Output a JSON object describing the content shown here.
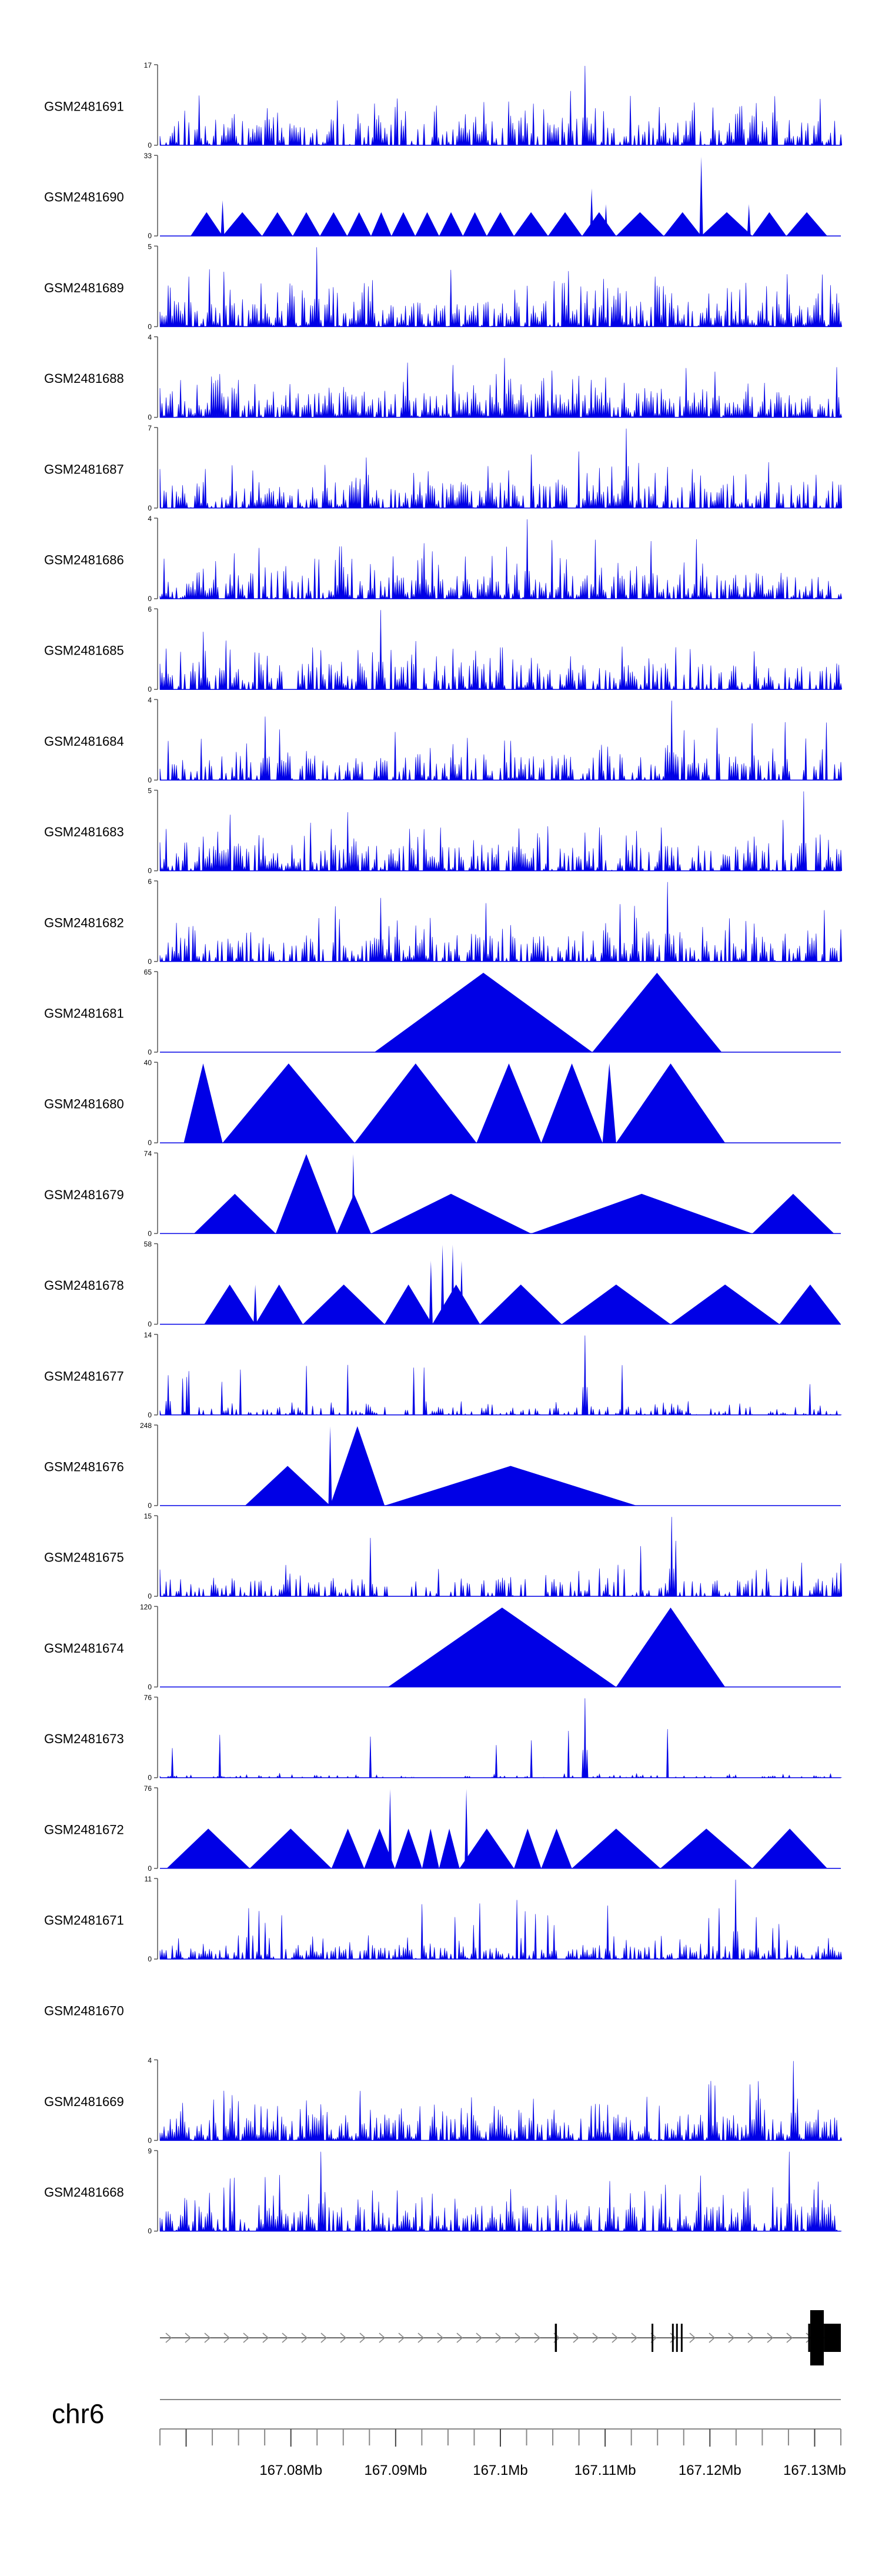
{
  "chart_data": {
    "type": "area",
    "title": "",
    "chromosome": "chr6",
    "x_axis": {
      "unit": "Mb",
      "range": [
        167.0675,
        167.1325
      ],
      "ticks": [
        167.0675,
        167.07,
        167.0725,
        167.075,
        167.0775,
        167.08,
        167.0825,
        167.085,
        167.0875,
        167.09,
        167.0925,
        167.095,
        167.0975,
        167.1,
        167.1025,
        167.105,
        167.1075,
        167.11,
        167.1125,
        167.115,
        167.1175,
        167.12,
        167.1225,
        167.125,
        167.1275,
        167.13,
        167.1325
      ],
      "major_labels": [
        "167.08Mb",
        "167.09Mb",
        "167.1Mb",
        "167.11Mb",
        "167.12Mb",
        "167.13Mb"
      ]
    },
    "tracks": [
      {
        "name": "GSM2481691",
        "ymax": 17,
        "ylabel_max": "17",
        "ylabel_min": "0",
        "mode": "dense",
        "seed": 11,
        "peaks": [
          [
            0.625,
            1.0
          ],
          [
            0.85,
            0.4
          ],
          [
            0.53,
            0.35
          ]
        ]
      },
      {
        "name": "GSM2481690",
        "ymax": 33,
        "ylabel_max": "33",
        "ylabel_min": "0",
        "mode": "triangles",
        "segments": [
          [
            0.045,
            0.092,
            0.3
          ],
          [
            0.092,
            0.15,
            0.3
          ],
          [
            0.15,
            0.195,
            0.3
          ],
          [
            0.195,
            0.235,
            0.3
          ],
          [
            0.235,
            0.275,
            0.3
          ],
          [
            0.275,
            0.31,
            0.3
          ],
          [
            0.31,
            0.34,
            0.3
          ],
          [
            0.34,
            0.375,
            0.3
          ],
          [
            0.375,
            0.41,
            0.3
          ],
          [
            0.41,
            0.445,
            0.3
          ],
          [
            0.445,
            0.48,
            0.3
          ],
          [
            0.48,
            0.52,
            0.3
          ],
          [
            0.52,
            0.57,
            0.3
          ],
          [
            0.57,
            0.62,
            0.3
          ],
          [
            0.62,
            0.67,
            0.3
          ],
          [
            0.67,
            0.74,
            0.3
          ],
          [
            0.74,
            0.795,
            0.3
          ],
          [
            0.795,
            0.87,
            0.3
          ],
          [
            0.87,
            0.92,
            0.3
          ],
          [
            0.92,
            0.98,
            0.3
          ]
        ],
        "spikes": [
          [
            0.092,
            0.45
          ],
          [
            0.634,
            0.6
          ],
          [
            0.795,
            1.0
          ],
          [
            0.655,
            0.4
          ],
          [
            0.865,
            0.4
          ]
        ]
      },
      {
        "name": "GSM2481689",
        "ymax": 5,
        "ylabel_max": "5",
        "ylabel_min": "0",
        "mode": "dense",
        "seed": 23,
        "density": 0.85,
        "peaks": [
          [
            0.23,
            1.0
          ]
        ]
      },
      {
        "name": "GSM2481688",
        "ymax": 4,
        "ylabel_max": "4",
        "ylabel_min": "0",
        "mode": "dense",
        "seed": 37,
        "density": 0.9,
        "peaks": []
      },
      {
        "name": "GSM2481687",
        "ymax": 7,
        "ylabel_max": "7",
        "ylabel_min": "0",
        "mode": "dense",
        "seed": 41,
        "density": 0.8,
        "peaks": [
          [
            0.685,
            1.0
          ]
        ]
      },
      {
        "name": "GSM2481686",
        "ymax": 4,
        "ylabel_max": "4",
        "ylabel_min": "0",
        "mode": "dense",
        "seed": 53,
        "density": 0.8,
        "peaks": [
          [
            0.54,
            1.0
          ]
        ]
      },
      {
        "name": "GSM2481685",
        "ymax": 6,
        "ylabel_max": "6",
        "ylabel_min": "0",
        "mode": "dense",
        "seed": 61,
        "density": 0.7,
        "peaks": [
          [
            0.325,
            1.0
          ]
        ]
      },
      {
        "name": "GSM2481684",
        "ymax": 4,
        "ylabel_max": "4",
        "ylabel_min": "0",
        "mode": "dense",
        "seed": 71,
        "density": 0.7,
        "peaks": [
          [
            0.752,
            1.0
          ],
          [
            0.155,
            0.8
          ]
        ]
      },
      {
        "name": "GSM2481683",
        "ymax": 5,
        "ylabel_max": "5",
        "ylabel_min": "0",
        "mode": "dense",
        "seed": 83,
        "density": 0.75,
        "peaks": [
          [
            0.945,
            1.0
          ]
        ]
      },
      {
        "name": "GSM2481682",
        "ymax": 6,
        "ylabel_max": "6",
        "ylabel_min": "0",
        "mode": "dense",
        "seed": 97,
        "density": 0.7,
        "peaks": [
          [
            0.745,
            1.0
          ],
          [
            0.325,
            0.8
          ]
        ]
      },
      {
        "name": "GSM2481681",
        "ymax": 65,
        "ylabel_max": "65",
        "ylabel_min": "0",
        "mode": "triangles",
        "segments": [
          [
            0.315,
            0.635,
            1.0
          ],
          [
            0.635,
            0.825,
            1.0
          ]
        ],
        "spikes": []
      },
      {
        "name": "GSM2481680",
        "ymax": 40,
        "ylabel_max": "40",
        "ylabel_min": "0",
        "mode": "triangles",
        "segments": [
          [
            0.035,
            0.092,
            1.0
          ],
          [
            0.092,
            0.286,
            1.0
          ],
          [
            0.286,
            0.465,
            1.0
          ],
          [
            0.465,
            0.56,
            1.0
          ],
          [
            0.56,
            0.65,
            1.0
          ],
          [
            0.65,
            0.67,
            1.0
          ],
          [
            0.67,
            0.83,
            1.0
          ]
        ],
        "spikes": []
      },
      {
        "name": "GSM2481679",
        "ymax": 74,
        "ylabel_max": "74",
        "ylabel_min": "0",
        "mode": "triangles",
        "segments": [
          [
            0.05,
            0.17,
            0.5
          ],
          [
            0.17,
            0.26,
            1.0
          ],
          [
            0.26,
            0.31,
            0.5
          ],
          [
            0.31,
            0.545,
            0.5
          ],
          [
            0.545,
            0.87,
            0.5
          ],
          [
            0.87,
            0.99,
            0.5
          ]
        ],
        "spikes": [
          [
            0.284,
            1.0
          ]
        ]
      },
      {
        "name": "GSM2481678",
        "ymax": 58,
        "ylabel_max": "58",
        "ylabel_min": "0",
        "mode": "triangles",
        "segments": [
          [
            0.065,
            0.14,
            0.5
          ],
          [
            0.14,
            0.21,
            0.5
          ],
          [
            0.21,
            0.33,
            0.5
          ],
          [
            0.33,
            0.4,
            0.5
          ],
          [
            0.4,
            0.47,
            0.5
          ],
          [
            0.47,
            0.59,
            0.5
          ],
          [
            0.59,
            0.75,
            0.5
          ],
          [
            0.75,
            0.91,
            0.5
          ],
          [
            0.91,
            1.0,
            0.5
          ]
        ],
        "spikes": [
          [
            0.14,
            0.5
          ],
          [
            0.398,
            0.8
          ],
          [
            0.415,
            1.0
          ],
          [
            0.43,
            1.0
          ],
          [
            0.443,
            0.8
          ]
        ]
      },
      {
        "name": "GSM2481677",
        "ymax": 14,
        "ylabel_max": "14",
        "ylabel_min": "0",
        "mode": "dense",
        "seed": 131,
        "density": 0.5,
        "low": 0.18,
        "peaks": [
          [
            0.625,
            1.0
          ],
          [
            0.013,
            0.5
          ]
        ]
      },
      {
        "name": "GSM2481676",
        "ymax": 248,
        "ylabel_max": "248",
        "ylabel_min": "0",
        "mode": "triangles",
        "segments": [
          [
            0.125,
            0.25,
            0.5
          ],
          [
            0.25,
            0.33,
            1.0
          ],
          [
            0.33,
            0.7,
            0.5
          ]
        ],
        "spikes": [
          [
            0.25,
            1.0
          ]
        ]
      },
      {
        "name": "GSM2481675",
        "ymax": 15,
        "ylabel_max": "15",
        "ylabel_min": "0",
        "mode": "dense",
        "seed": 149,
        "density": 0.55,
        "low": 0.4,
        "peaks": [
          [
            0.752,
            1.0
          ]
        ]
      },
      {
        "name": "GSM2481674",
        "ymax": 120,
        "ylabel_max": "120",
        "ylabel_min": "0",
        "mode": "triangles",
        "segments": [
          [
            0.335,
            0.67,
            1.0
          ],
          [
            0.67,
            0.83,
            1.0
          ]
        ],
        "spikes": []
      },
      {
        "name": "GSM2481673",
        "ymax": 76,
        "ylabel_max": "76",
        "ylabel_min": "0",
        "mode": "dense",
        "seed": 173,
        "density": 0.4,
        "low": 0.06,
        "peaks": [
          [
            0.625,
            1.0
          ]
        ]
      },
      {
        "name": "GSM2481672",
        "ymax": 76,
        "ylabel_max": "76",
        "ylabel_min": "0",
        "mode": "triangles",
        "segments": [
          [
            0.01,
            0.132,
            0.5
          ],
          [
            0.132,
            0.252,
            0.5
          ],
          [
            0.252,
            0.3,
            0.5
          ],
          [
            0.3,
            0.345,
            0.5
          ],
          [
            0.345,
            0.385,
            0.5
          ],
          [
            0.385,
            0.41,
            0.5
          ],
          [
            0.41,
            0.44,
            0.5
          ],
          [
            0.44,
            0.52,
            0.5
          ],
          [
            0.52,
            0.56,
            0.5
          ],
          [
            0.56,
            0.605,
            0.5
          ],
          [
            0.605,
            0.735,
            0.5
          ],
          [
            0.735,
            0.87,
            0.5
          ],
          [
            0.87,
            0.98,
            0.5
          ]
        ],
        "spikes": [
          [
            0.338,
            1.0
          ],
          [
            0.45,
            1.0
          ]
        ]
      },
      {
        "name": "GSM2481671",
        "ymax": 11,
        "ylabel_max": "11",
        "ylabel_min": "0",
        "mode": "dense",
        "seed": 191,
        "density": 0.75,
        "low": 0.3,
        "peaks": [
          [
            0.845,
            1.0
          ]
        ]
      },
      {
        "name": "GSM2481670",
        "ymax": 0,
        "ylabel_max": "",
        "ylabel_min": "",
        "mode": "empty"
      },
      {
        "name": "GSM2481669",
        "ymax": 4,
        "ylabel_max": "4",
        "ylabel_min": "0",
        "mode": "dense",
        "seed": 211,
        "density": 0.85,
        "peaks": [
          [
            0.93,
            1.0
          ]
        ]
      },
      {
        "name": "GSM2481668",
        "ymax": 9,
        "ylabel_max": "9",
        "ylabel_min": "0",
        "mode": "dense",
        "seed": 223,
        "density": 0.75,
        "peaks": [
          [
            0.237,
            1.0
          ],
          [
            0.925,
            1.0
          ]
        ]
      }
    ],
    "gene_model": {
      "strand": "+",
      "exons": [
        [
          0.58,
          0.583
        ],
        [
          0.722,
          0.724
        ],
        [
          0.752,
          0.754
        ],
        [
          0.758,
          0.76
        ],
        [
          0.765,
          0.767
        ],
        [
          0.952,
          0.955
        ],
        [
          0.955,
          0.975,
          "thick"
        ],
        [
          0.975,
          1.0,
          "thick"
        ]
      ]
    }
  }
}
